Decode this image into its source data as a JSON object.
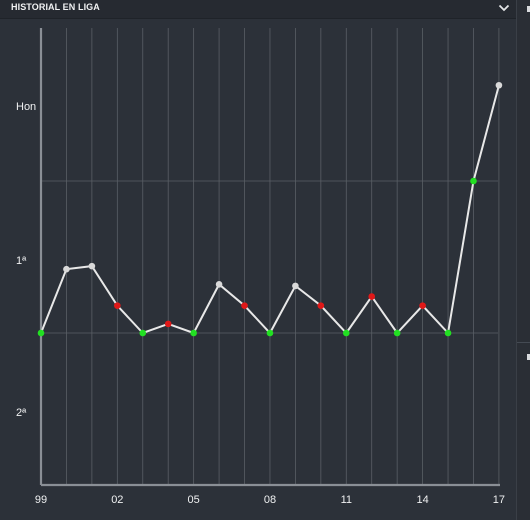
{
  "header": {
    "title": "HISTORIAL EN LIGA",
    "toggle_icon": "chevron-down-icon"
  },
  "chart_data": {
    "type": "line",
    "title": "",
    "xlabel": "",
    "ylabel": "",
    "x_tick_labels": [
      "99",
      "02",
      "05",
      "08",
      "11",
      "14",
      "17"
    ],
    "y_tick_labels": [
      "Hon",
      "1ª",
      "2ª"
    ],
    "series": [
      {
        "seasons": [
          "99",
          "00",
          "01",
          "02",
          "03",
          "04",
          "05",
          "06",
          "07",
          "08",
          "09",
          "10",
          "11",
          "12",
          "13",
          "14",
          "15",
          "16",
          "17"
        ],
        "positions": [
          0,
          0.42,
          0.44,
          0.18,
          0,
          0.06,
          0,
          0.32,
          0.18,
          0,
          0.31,
          0.18,
          0,
          0.24,
          0,
          0.18,
          0,
          1,
          1.63
        ],
        "results": [
          "up",
          "neutral",
          "neutral",
          "down",
          "up",
          "down",
          "up",
          "neutral",
          "down",
          "up",
          "neutral",
          "down",
          "up",
          "down",
          "up",
          "down",
          "up",
          "up",
          "neutral"
        ]
      }
    ],
    "colors": {
      "line": "#e8e8e8",
      "up": "#22e022",
      "down": "#e01818",
      "neutral": "#d9d9d9",
      "grid": "#5a5f66"
    },
    "grid": true
  }
}
